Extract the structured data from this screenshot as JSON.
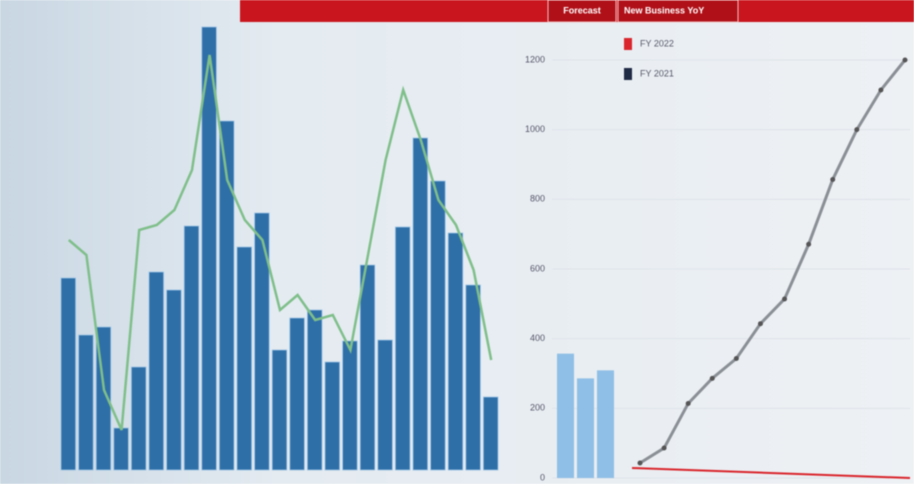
{
  "header": {
    "tabs": [
      "Forecast",
      "New Business YoY"
    ]
  },
  "chart_data": [
    {
      "type": "combo",
      "ylim": [
        0,
        450
      ],
      "series": [
        {
          "color": "#2f6fa8",
          "values": [
            192,
            135,
            143,
            42,
            103,
            198,
            180,
            244,
            443,
            349,
            223,
            257,
            120,
            152,
            160,
            108,
            129,
            205,
            130,
            243,
            332,
            289,
            237,
            185,
            73
          ]
        },
        {
          "color": "#7fbf8a",
          "values": [
            230,
            215,
            80,
            40,
            240,
            245,
            260,
            300,
            415,
            290,
            250,
            230,
            160,
            175,
            150,
            155,
            120,
            215,
            310,
            380,
            330,
            270,
            245,
            200,
            110
          ]
        }
      ]
    },
    {
      "type": "cumulative",
      "ylim": [
        0,
        1200
      ],
      "yticks": [
        0,
        200,
        400,
        600,
        800,
        1000,
        1200
      ],
      "legend": [
        {
          "label": "FY 2022",
          "color": "#d9252b"
        },
        {
          "label": "FY 2021",
          "color": "#1f2a44"
        }
      ],
      "bars": {
        "color": "#8fbfe6",
        "values": [
          357,
          286,
          309
        ]
      },
      "line": {
        "color": "#8a8f96",
        "values": [
          43,
          86,
          214,
          286,
          343,
          443,
          514,
          671,
          857,
          1000,
          1114,
          1200
        ]
      }
    }
  ]
}
